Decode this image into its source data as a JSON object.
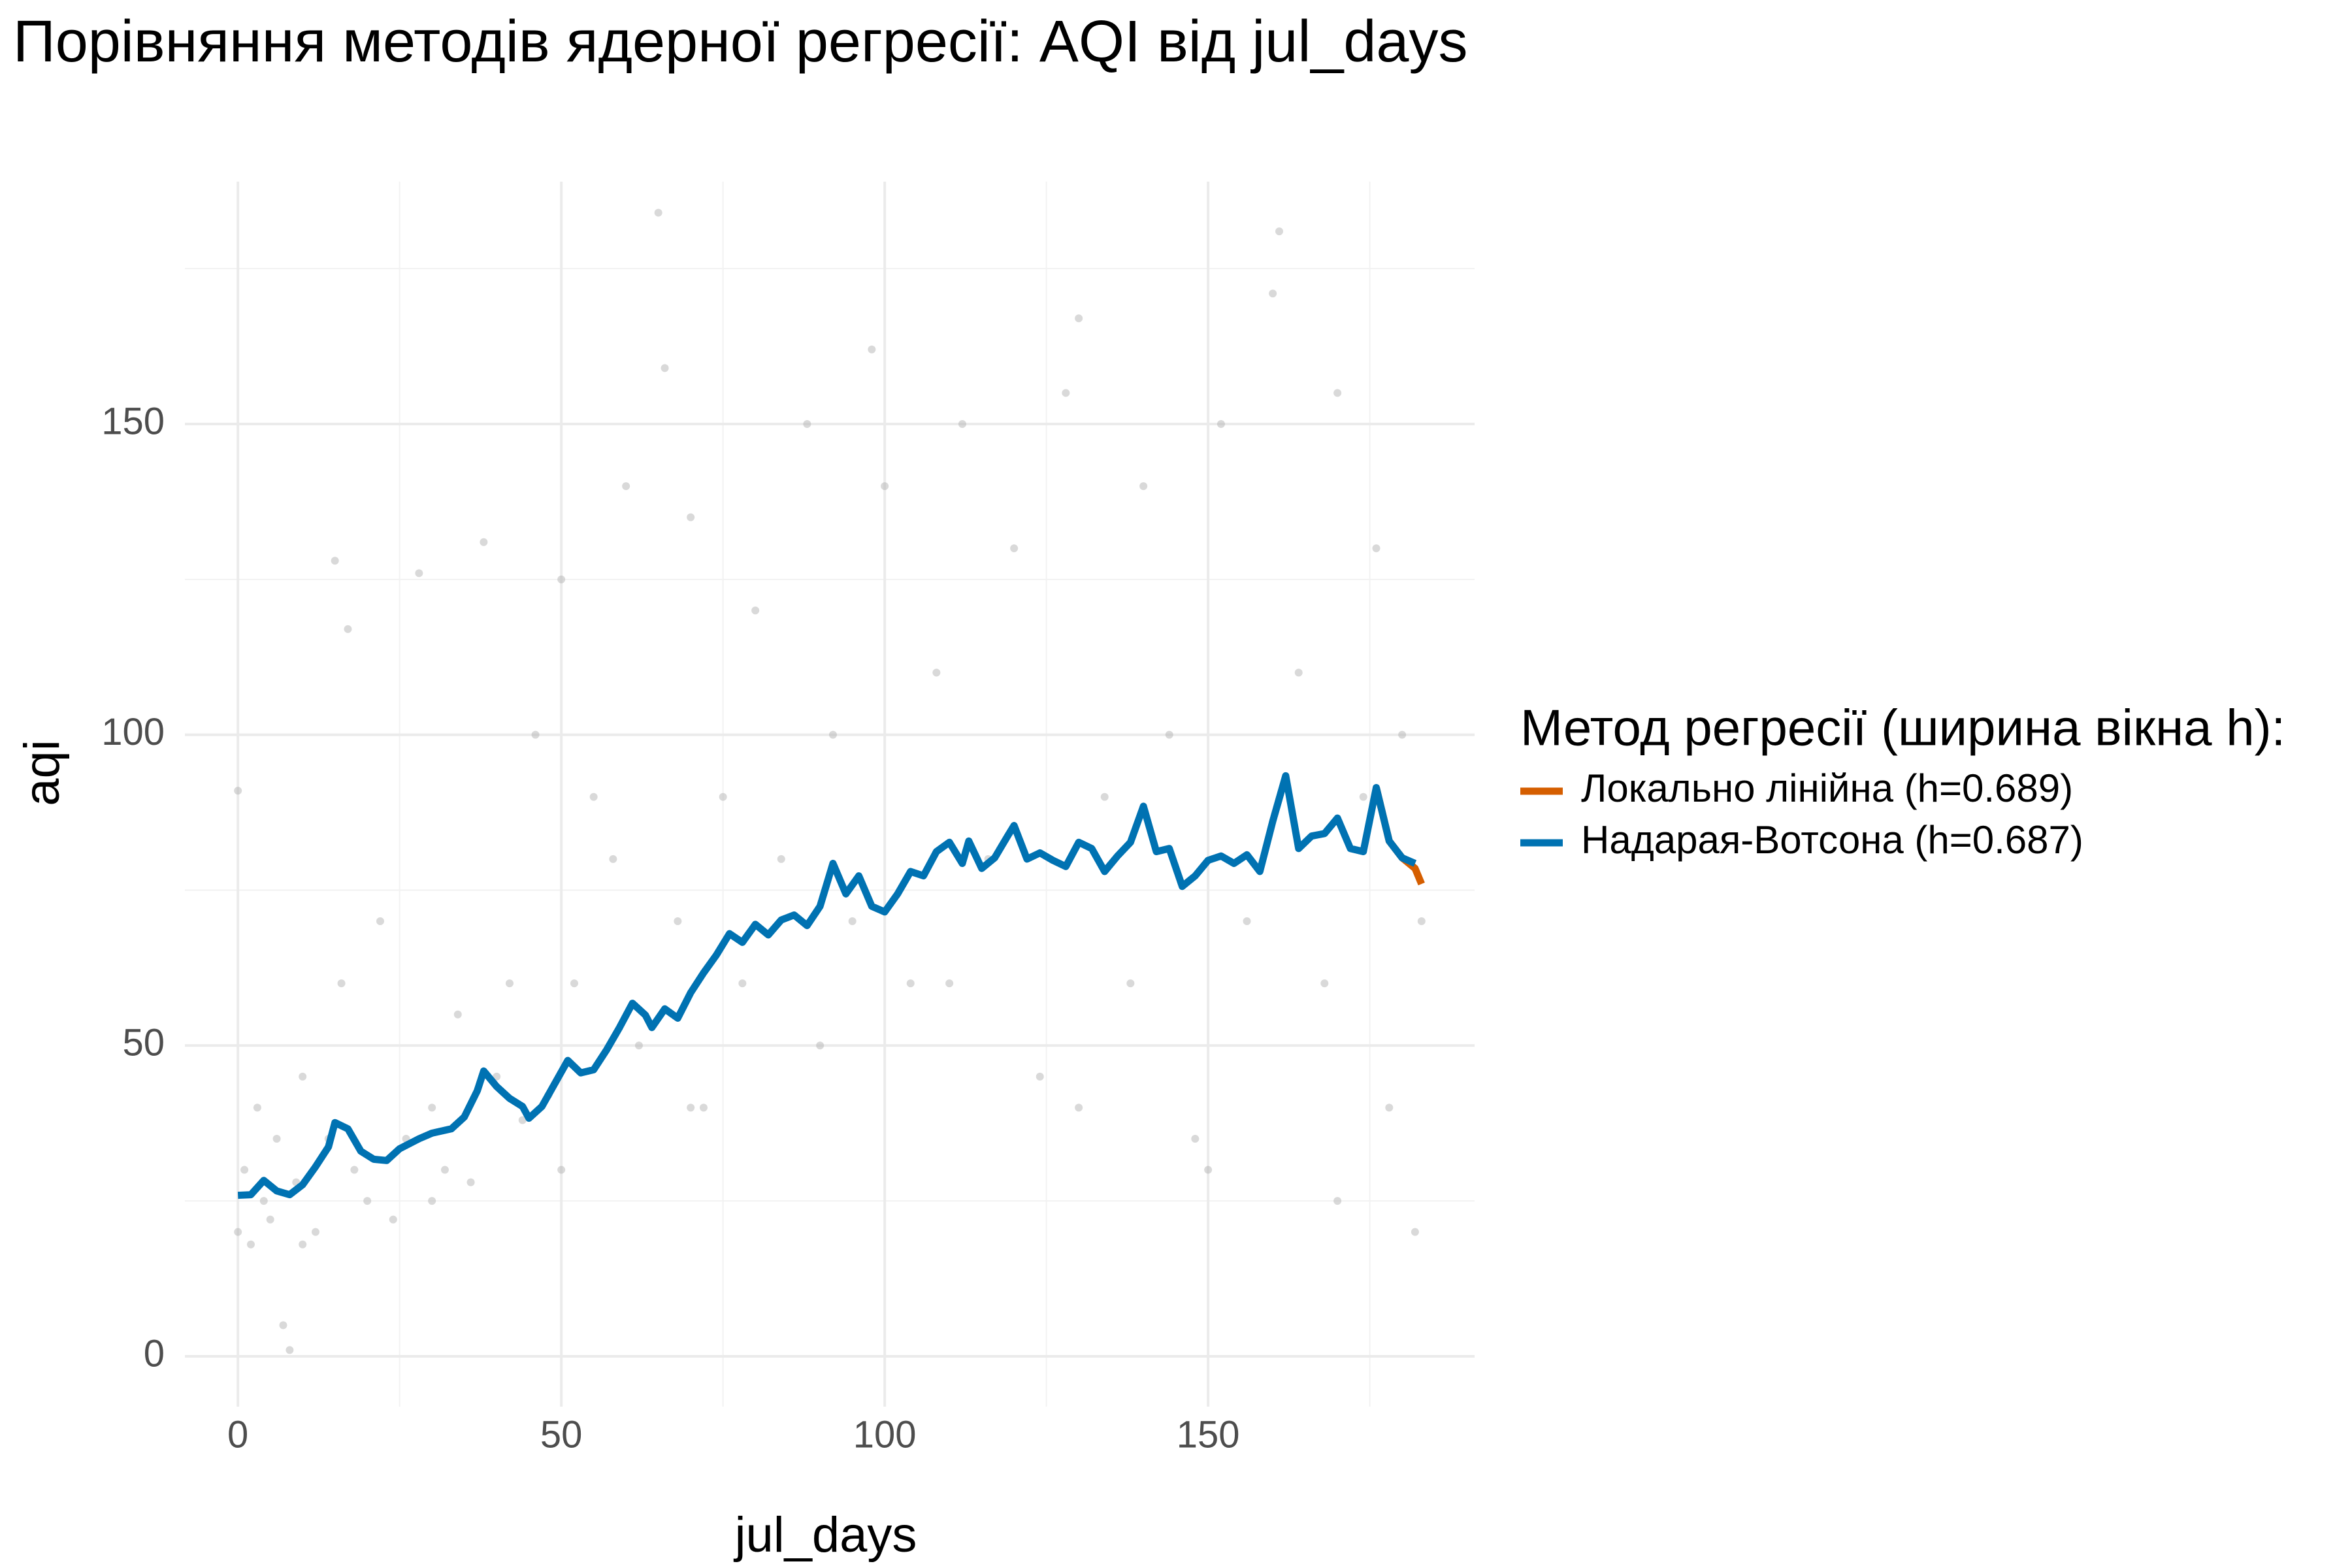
{
  "chart_data": {
    "type": "scatter_lines",
    "title": "Порівняння методів ядерної регресії: AQI від jul_days",
    "x_label": "jul_days",
    "y_label": "aqi",
    "legend_title": "Метод регресії (ширина вікна h):",
    "legend_position": "right",
    "xlim": [
      -8.2,
      191.2
    ],
    "ylim": [
      -8.1,
      189
    ],
    "xticks": [
      0,
      50,
      100,
      150
    ],
    "yticks": [
      0,
      50,
      100,
      150
    ],
    "x_minor_gridlines": [
      25,
      75,
      125,
      175
    ],
    "y_minor_gridlines": [
      25,
      75,
      125,
      175
    ],
    "grid": true,
    "points": {
      "color": "#b3b3b3",
      "x": [
        0,
        0,
        1,
        2,
        3,
        4,
        5,
        6,
        7,
        8,
        9,
        10,
        12,
        14,
        15,
        16,
        17,
        18,
        20,
        22,
        24,
        26,
        28,
        30,
        32,
        34,
        36,
        38,
        40,
        42,
        44,
        46,
        48,
        50,
        52,
        55,
        58,
        60,
        62,
        65,
        66,
        68,
        70,
        72,
        75,
        78,
        80,
        84,
        88,
        92,
        95,
        98,
        100,
        104,
        108,
        112,
        116,
        120,
        124,
        128,
        130,
        134,
        138,
        140,
        144,
        148,
        152,
        156,
        160,
        161,
        164,
        168,
        170,
        174,
        176,
        178,
        180,
        182,
        183,
        10,
        30,
        50,
        70,
        90,
        110,
        130,
        150,
        170
      ],
      "y": [
        91,
        20,
        30,
        18,
        40,
        25,
        22,
        35,
        5,
        1,
        28,
        45,
        20,
        35,
        128,
        60,
        117,
        30,
        25,
        70,
        22,
        35,
        126,
        40,
        30,
        55,
        28,
        131,
        45,
        60,
        38,
        100,
        42,
        125,
        60,
        90,
        80,
        140,
        50,
        184,
        159,
        70,
        135,
        40,
        90,
        60,
        120,
        80,
        150,
        100,
        70,
        162,
        140,
        60,
        110,
        150,
        80,
        130,
        45,
        155,
        167,
        90,
        60,
        140,
        100,
        35,
        150,
        70,
        171,
        181,
        110,
        60,
        155,
        90,
        130,
        40,
        100,
        20,
        70,
        18,
        25,
        30,
        40,
        50,
        60,
        40,
        30,
        25
      ]
    },
    "series": [
      {
        "name": "Локально лінійна (h=0.689)",
        "color": "#d55e00",
        "x": [
          176,
          178,
          180,
          182,
          183
        ],
        "values": [
          91.5,
          82.9,
          80.2,
          78.5,
          76
        ]
      },
      {
        "name": "Надарая-Вотсона (h=0.687)",
        "color": "#0072b2",
        "x": [
          0,
          2,
          4,
          6,
          8,
          10,
          12,
          14,
          15,
          17,
          19,
          21,
          23,
          25,
          28,
          30,
          33,
          35,
          37,
          38,
          40,
          42,
          44,
          45,
          47,
          49,
          51,
          53,
          55,
          57,
          59,
          61,
          63,
          64,
          66,
          68,
          70,
          72,
          74,
          76,
          78,
          80,
          82,
          84,
          86,
          88,
          90,
          92,
          94,
          96,
          98,
          100,
          102,
          104,
          106,
          108,
          110,
          112,
          113,
          115,
          117,
          119,
          120,
          122,
          124,
          126,
          128,
          130,
          132,
          134,
          136,
          138,
          140,
          142,
          144,
          146,
          148,
          150,
          152,
          154,
          156,
          158,
          160,
          162,
          164,
          166,
          168,
          170,
          172,
          174,
          176,
          178,
          180,
          182
        ],
        "values": [
          25.9,
          26,
          28.3,
          26.6,
          26,
          27.6,
          30.5,
          33.7,
          37.6,
          36.6,
          33,
          31.7,
          31.5,
          33.4,
          35,
          35.9,
          36.6,
          38.5,
          42.7,
          45.9,
          43.4,
          41.5,
          40.2,
          38.3,
          40.2,
          43.9,
          47.6,
          45.6,
          46.1,
          49.3,
          52.9,
          56.8,
          54.9,
          52.9,
          55.9,
          54.4,
          58.5,
          61.7,
          64.6,
          68,
          66.6,
          69.5,
          67.8,
          70.2,
          71,
          69.3,
          72.4,
          79.3,
          74.4,
          77.3,
          72.4,
          71.5,
          74.4,
          78,
          77.3,
          81.2,
          82.7,
          79.3,
          82.9,
          78.5,
          80.2,
          83.7,
          85.4,
          80,
          81,
          79.8,
          78.8,
          82.7,
          81.7,
          78,
          80.5,
          82.7,
          88.5,
          81.2,
          81.7,
          75.6,
          77.3,
          79.8,
          80.5,
          79.3,
          80.7,
          78,
          86.1,
          93.4,
          81.7,
          83.7,
          84.1,
          86.6,
          81.7,
          81.2,
          91.5,
          82.9,
          80.2,
          79.3
        ]
      }
    ]
  }
}
